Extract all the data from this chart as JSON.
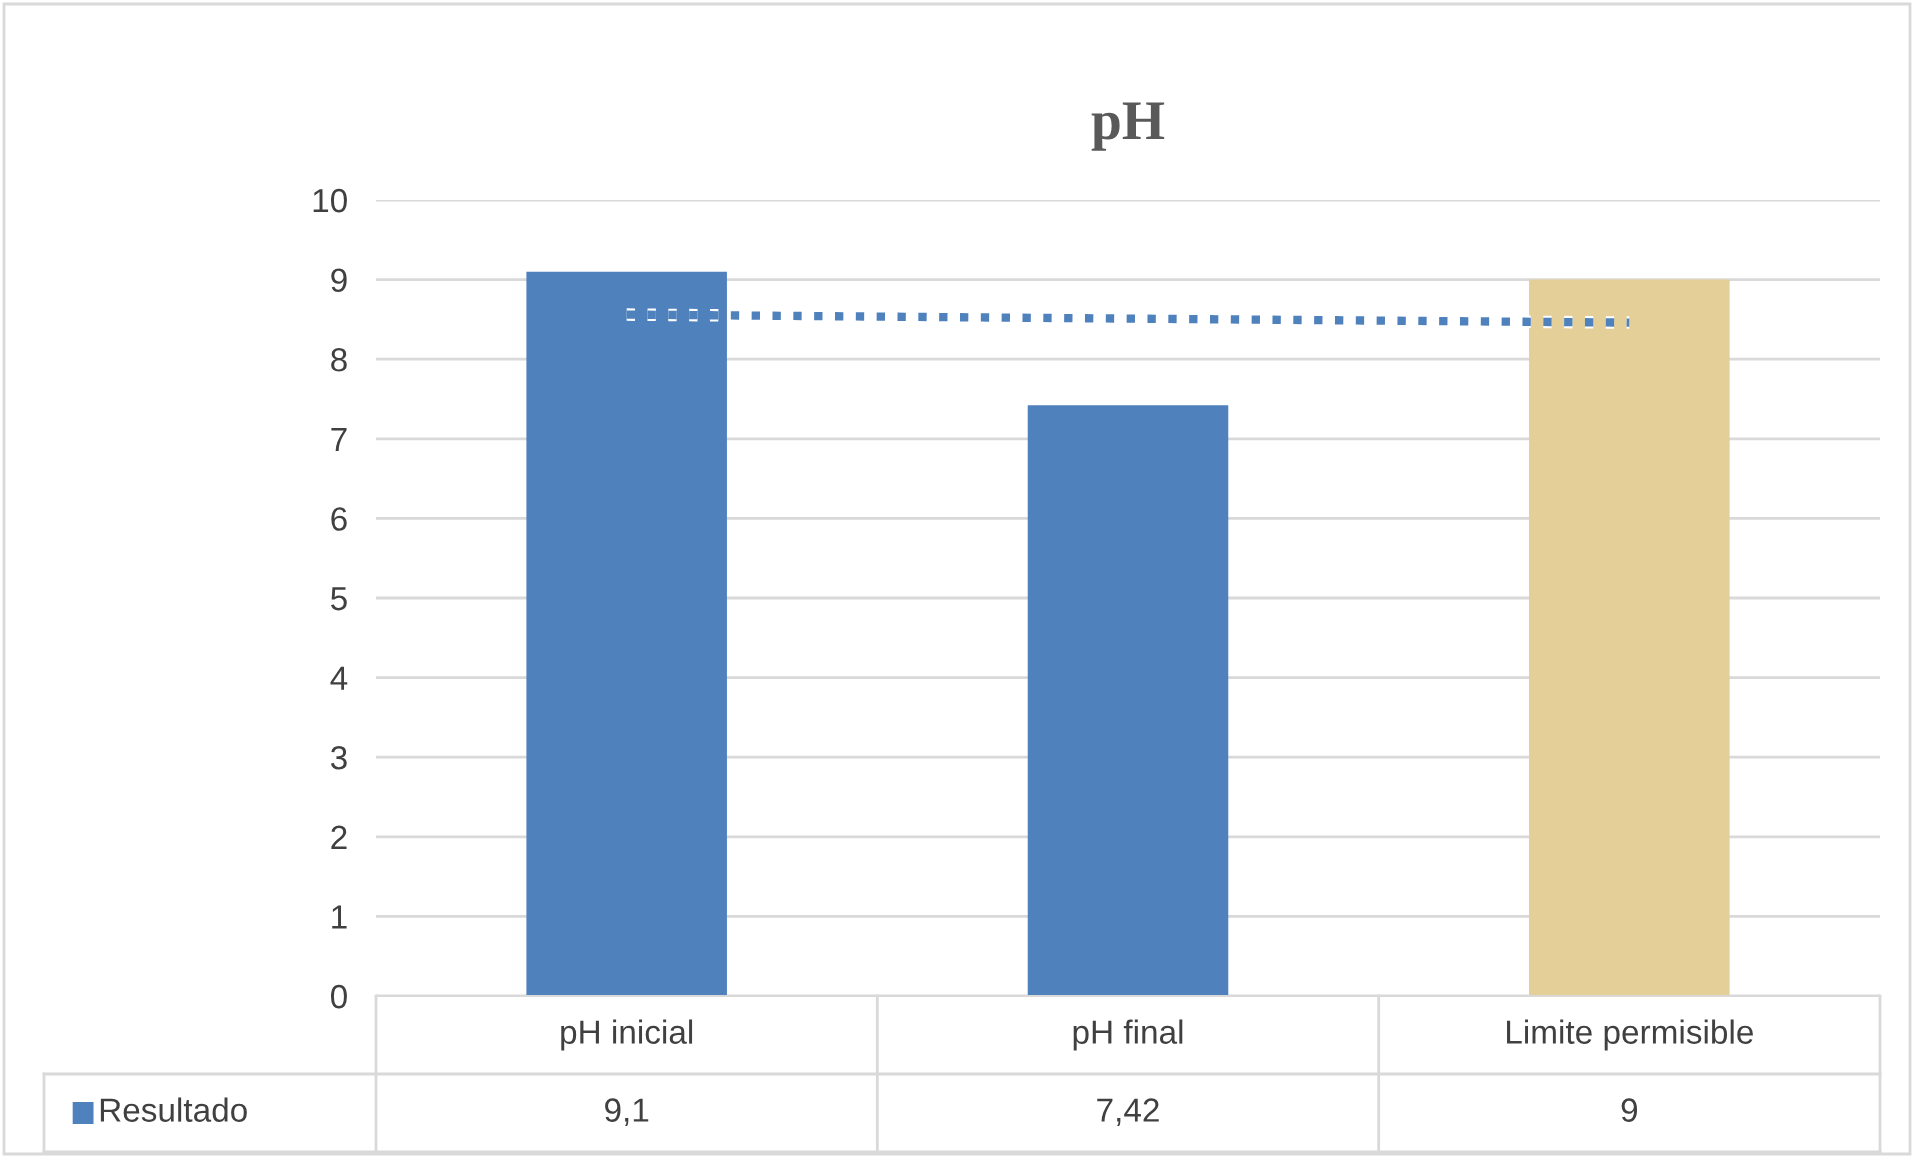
{
  "chart_data": {
    "type": "bar",
    "title": "pH",
    "categories": [
      "pH inicial",
      "pH final",
      "Limite permisible"
    ],
    "series": [
      {
        "name": "Resultado",
        "color": "#4f81bd",
        "colors": [
          "#4f81bd",
          "#4f81bd",
          "#e3cf97"
        ],
        "values": [
          9.1,
          7.42,
          9
        ],
        "value_labels": [
          "9,1",
          "7,42",
          "9"
        ]
      },
      {
        "type": "line",
        "color": "#4f81bd",
        "line_style": "dotted",
        "values": [
          8.56,
          8.51,
          8.46
        ]
      }
    ],
    "ylim": [
      0,
      10
    ],
    "yticks": [
      0,
      1,
      2,
      3,
      4,
      5,
      6,
      7,
      8,
      9,
      10
    ],
    "grid": "y",
    "legend": "bottom"
  }
}
